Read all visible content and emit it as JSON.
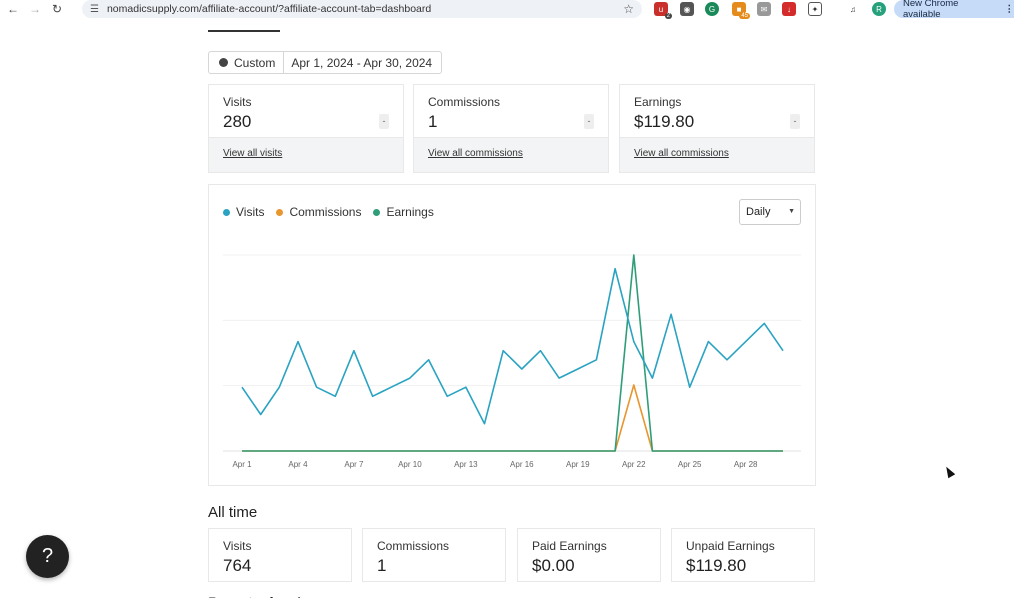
{
  "browser": {
    "url": "nomadicsupply.com/affiliate-account/?affiliate-account-tab=dashboard",
    "update_label": "New Chrome available",
    "profile_initial": "R",
    "ext_badges": [
      "2",
      "45"
    ]
  },
  "date_filter": {
    "preset": "Custom",
    "range": "Apr 1, 2024 - Apr 30, 2024"
  },
  "stats": [
    {
      "label": "Visits",
      "value": "280",
      "delta": "-",
      "link": "View all visits"
    },
    {
      "label": "Commissions",
      "value": "1",
      "delta": "-",
      "link": "View all commissions"
    },
    {
      "label": "Earnings",
      "value": "$119.80",
      "delta": "-",
      "link": "View all commissions"
    }
  ],
  "chart_controls": {
    "period": "Daily"
  },
  "chart_data": {
    "type": "line",
    "x": [
      "Apr 1",
      "Apr 2",
      "Apr 3",
      "Apr 4",
      "Apr 5",
      "Apr 6",
      "Apr 7",
      "Apr 8",
      "Apr 9",
      "Apr 10",
      "Apr 11",
      "Apr 12",
      "Apr 13",
      "Apr 14",
      "Apr 15",
      "Apr 16",
      "Apr 17",
      "Apr 18",
      "Apr 19",
      "Apr 20",
      "Apr 21",
      "Apr 22",
      "Apr 23",
      "Apr 24",
      "Apr 25",
      "Apr 26",
      "Apr 27",
      "Apr 28",
      "Apr 29",
      "Apr 30"
    ],
    "tick_labels": [
      "Apr 1",
      "Apr 4",
      "Apr 7",
      "Apr 10",
      "Apr 13",
      "Apr 16",
      "Apr 19",
      "Apr 22",
      "Apr 25",
      "Apr 28"
    ],
    "series": [
      {
        "name": "Visits",
        "color": "#2aa3c2",
        "values": [
          7,
          4,
          7,
          12,
          7,
          6,
          11,
          6,
          7,
          8,
          10,
          6,
          7,
          3,
          11,
          9,
          11,
          8,
          9,
          10,
          20,
          12,
          8,
          15,
          7,
          12,
          10,
          12,
          14,
          11
        ]
      },
      {
        "name": "Commissions",
        "color": "#e8962e",
        "values": [
          0,
          0,
          0,
          0,
          0,
          0,
          0,
          0,
          0,
          0,
          0,
          0,
          0,
          0,
          0,
          0,
          0,
          0,
          0,
          0,
          0,
          1,
          0,
          0,
          0,
          0,
          0,
          0,
          0,
          0
        ]
      },
      {
        "name": "Earnings",
        "color": "#2f9e78",
        "values": [
          0,
          0,
          0,
          0,
          0,
          0,
          0,
          0,
          0,
          0,
          0,
          0,
          0,
          0,
          0,
          0,
          0,
          0,
          0,
          0,
          0,
          119.8,
          0,
          0,
          0,
          0,
          0,
          0,
          0,
          0
        ]
      }
    ],
    "grid": true,
    "legend": "top-left"
  },
  "all_time": {
    "title": "All time",
    "cards": [
      {
        "label": "Visits",
        "value": "764"
      },
      {
        "label": "Commissions",
        "value": "1"
      },
      {
        "label": "Paid Earnings",
        "value": "$0.00"
      },
      {
        "label": "Unpaid Earnings",
        "value": "$119.80"
      }
    ]
  },
  "next_section": "Recent referrals",
  "help": {
    "label": "?"
  }
}
